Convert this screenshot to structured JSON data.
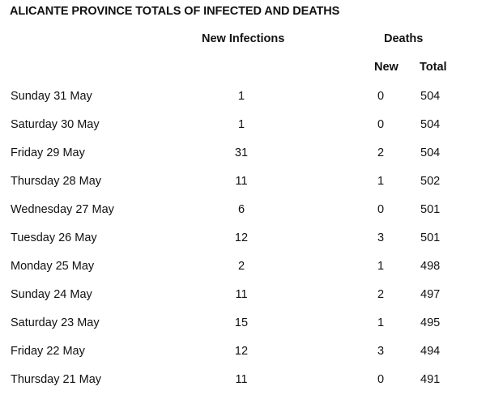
{
  "title": "ALICANTE PROVINCE TOTALS OF INFECTED AND DEATHS",
  "headers": {
    "new_infections": "New Infections",
    "deaths": "Deaths",
    "new": "New",
    "total": "Total"
  },
  "rows": [
    {
      "day": "Sunday 31 May",
      "infections": "1",
      "new_deaths": "0",
      "total_deaths": "504"
    },
    {
      "day": "Saturday 30 May",
      "infections": "1",
      "new_deaths": "0",
      "total_deaths": "504"
    },
    {
      "day": "Friday 29 May",
      "infections": "31",
      "new_deaths": "2",
      "total_deaths": "504"
    },
    {
      "day": "Thursday 28 May",
      "infections": "11",
      "new_deaths": "1",
      "total_deaths": "502"
    },
    {
      "day": "Wednesday 27 May",
      "infections": "6",
      "new_deaths": "0",
      "total_deaths": "501"
    },
    {
      "day": "Tuesday 26 May",
      "infections": "12",
      "new_deaths": "3",
      "total_deaths": "501"
    },
    {
      "day": "Monday 25 May",
      "infections": "2",
      "new_deaths": "1",
      "total_deaths": "498"
    },
    {
      "day": "Sunday 24 May",
      "infections": "11",
      "new_deaths": "2",
      "total_deaths": "497"
    },
    {
      "day": "Saturday 23 May",
      "infections": "15",
      "new_deaths": "1",
      "total_deaths": "495"
    },
    {
      "day": "Friday 22 May",
      "infections": "12",
      "new_deaths": "3",
      "total_deaths": "494"
    },
    {
      "day": "Thursday 21 May",
      "infections": "11",
      "new_deaths": "0",
      "total_deaths": "491"
    }
  ]
}
